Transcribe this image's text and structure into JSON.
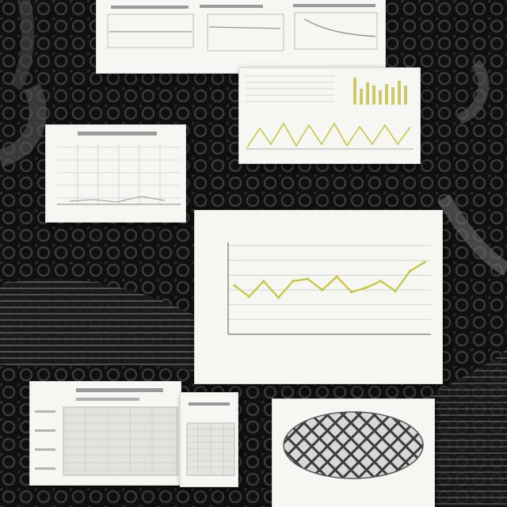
{
  "palette": {
    "background": "#0b0b0b",
    "card": "#f6f6f3",
    "accent_line": "#c8c33c",
    "ink": "#2a2a2a"
  },
  "main_chart": {
    "title": "",
    "xlabel": "",
    "ylabel": ""
  },
  "chart_data": [
    {
      "type": "line",
      "title": "",
      "values": [
        44,
        34,
        48,
        33,
        48,
        50,
        40,
        52,
        38,
        42,
        48,
        39,
        57,
        65
      ],
      "ylim": [
        0,
        80
      ],
      "grid": true
    }
  ]
}
